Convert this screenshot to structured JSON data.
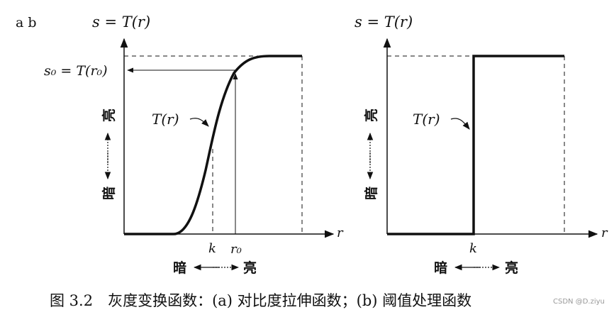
{
  "panel_letters": "a  b",
  "left": {
    "y_axis_title": "s = T(r)",
    "s0_label": "s₀ = T(r₀)",
    "curve_label": "T(r)",
    "light_label": "亮",
    "dark_label": "暗",
    "x_axis_label": "r",
    "k_label": "k",
    "r0_label": "r₀",
    "bottom_dark": "暗",
    "bottom_light": "亮"
  },
  "right": {
    "y_axis_title": "s = T(r)",
    "curve_label": "T(r)",
    "light_label": "亮",
    "dark_label": "暗",
    "x_axis_label": "r",
    "k_label": "k",
    "bottom_dark": "暗",
    "bottom_light": "亮"
  },
  "caption": "图 3.2　灰度变换函数：(a) 对比度拉伸函数；(b) 阈值处理函数",
  "watermark": "CSDN @D.ziyu"
}
